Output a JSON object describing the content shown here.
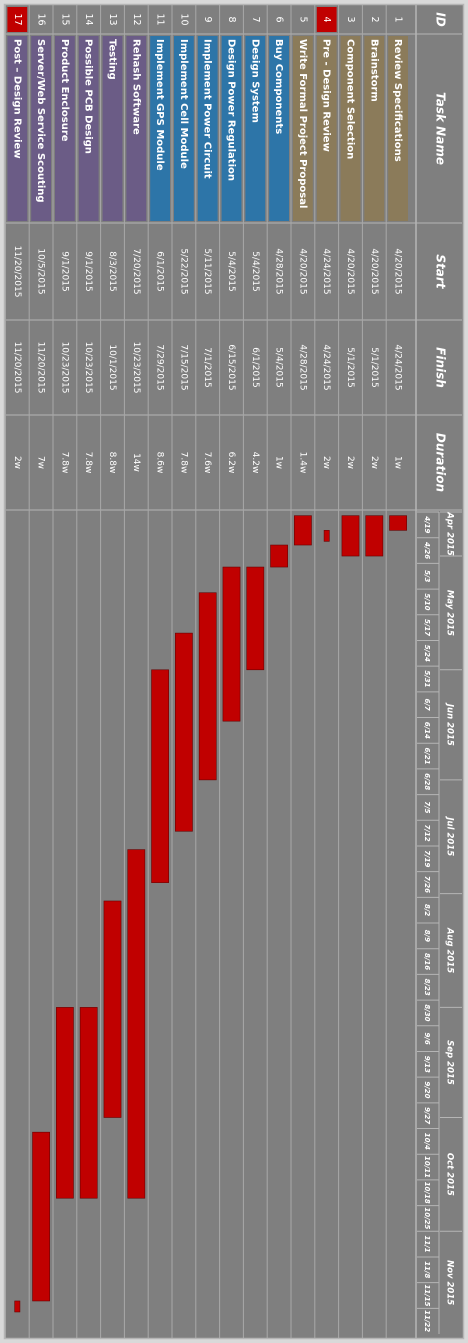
{
  "chart_data": {
    "type": "gantt",
    "columns": [
      "ID",
      "Task Name",
      "Start",
      "Finish",
      "Duration"
    ],
    "category_colors": {
      "planning": "#8b7b5a",
      "design": "#2d75a8",
      "build": "#6b5c86",
      "milestone": "#c00000"
    },
    "bar_color": "#c00000",
    "tasks": [
      {
        "id": "1",
        "name": "Review Specifications",
        "start": "4/20/2015",
        "finish": "4/24/2015",
        "duration": "1w",
        "category": "planning",
        "milestone": false
      },
      {
        "id": "2",
        "name": "Brainstorm",
        "start": "4/20/2015",
        "finish": "5/1/2015",
        "duration": "2w",
        "category": "planning",
        "milestone": false
      },
      {
        "id": "3",
        "name": "Component Selection",
        "start": "4/20/2015",
        "finish": "5/1/2015",
        "duration": "2w",
        "category": "planning",
        "milestone": false
      },
      {
        "id": "4",
        "name": "Pre - Design Review",
        "start": "4/24/2015",
        "finish": "4/24/2015",
        "duration": "2w",
        "category": "planning",
        "milestone": true
      },
      {
        "id": "5",
        "name": "Write Formal Project Proposal",
        "start": "4/20/2015",
        "finish": "4/28/2015",
        "duration": "1.4w",
        "category": "planning",
        "milestone": false
      },
      {
        "id": "6",
        "name": "Buy Components",
        "start": "4/28/2015",
        "finish": "5/4/2015",
        "duration": "1w",
        "category": "design",
        "milestone": false
      },
      {
        "id": "7",
        "name": "Design System",
        "start": "5/4/2015",
        "finish": "6/1/2015",
        "duration": "4.2w",
        "category": "design",
        "milestone": false
      },
      {
        "id": "8",
        "name": "Design Power Regulation",
        "start": "5/4/2015",
        "finish": "6/15/2015",
        "duration": "6.2w",
        "category": "design",
        "milestone": false
      },
      {
        "id": "9",
        "name": "Implement Power Circuit",
        "start": "5/11/2015",
        "finish": "7/1/2015",
        "duration": "7.6w",
        "category": "design",
        "milestone": false
      },
      {
        "id": "10",
        "name": "Implement Cell Module",
        "start": "5/22/2015",
        "finish": "7/15/2015",
        "duration": "7.8w",
        "category": "design",
        "milestone": false
      },
      {
        "id": "11",
        "name": "Implement GPS Module",
        "start": "6/1/2015",
        "finish": "7/29/2015",
        "duration": "8.6w",
        "category": "design",
        "milestone": false
      },
      {
        "id": "12",
        "name": "Rehash Software",
        "start": "7/20/2015",
        "finish": "10/23/2015",
        "duration": "14w",
        "category": "build",
        "milestone": false
      },
      {
        "id": "13",
        "name": "Testing",
        "start": "8/3/2015",
        "finish": "10/1/2015",
        "duration": "8.8w",
        "category": "build",
        "milestone": false
      },
      {
        "id": "14",
        "name": "Possible PCB Design",
        "start": "9/1/2015",
        "finish": "10/23/2015",
        "duration": "7.8w",
        "category": "build",
        "milestone": false
      },
      {
        "id": "15",
        "name": "Product Enclosure",
        "start": "9/1/2015",
        "finish": "10/23/2015",
        "duration": "7.8w",
        "category": "build",
        "milestone": false
      },
      {
        "id": "16",
        "name": "Server/Web Service Scouting",
        "start": "10/5/2015",
        "finish": "11/20/2015",
        "duration": "7w",
        "category": "build",
        "milestone": false
      },
      {
        "id": "17",
        "name": "Post – Design Review",
        "start": "11/20/2015",
        "finish": "11/20/2015",
        "duration": "2w",
        "category": "build",
        "milestone": true
      }
    ],
    "timeline": {
      "start": "2015-04-19",
      "end": "2015-11-29",
      "months": [
        "Apr 2015",
        "May 2015",
        "Jun 2015",
        "Jul 2015",
        "Aug 2015",
        "Sep 2015",
        "Oct 2015",
        "Nov 2015"
      ],
      "weeks": [
        "4/19",
        "4/26",
        "5/3",
        "5/10",
        "5/17",
        "5/24",
        "5/31",
        "6/7",
        "6/14",
        "6/21",
        "6/28",
        "7/5",
        "7/12",
        "7/19",
        "7/26",
        "8/2",
        "8/9",
        "8/16",
        "8/23",
        "8/30",
        "9/6",
        "9/13",
        "9/20",
        "9/27",
        "10/4",
        "10/11",
        "10/18",
        "10/25",
        "11/1",
        "11/8",
        "11/15",
        "11/22"
      ]
    }
  }
}
